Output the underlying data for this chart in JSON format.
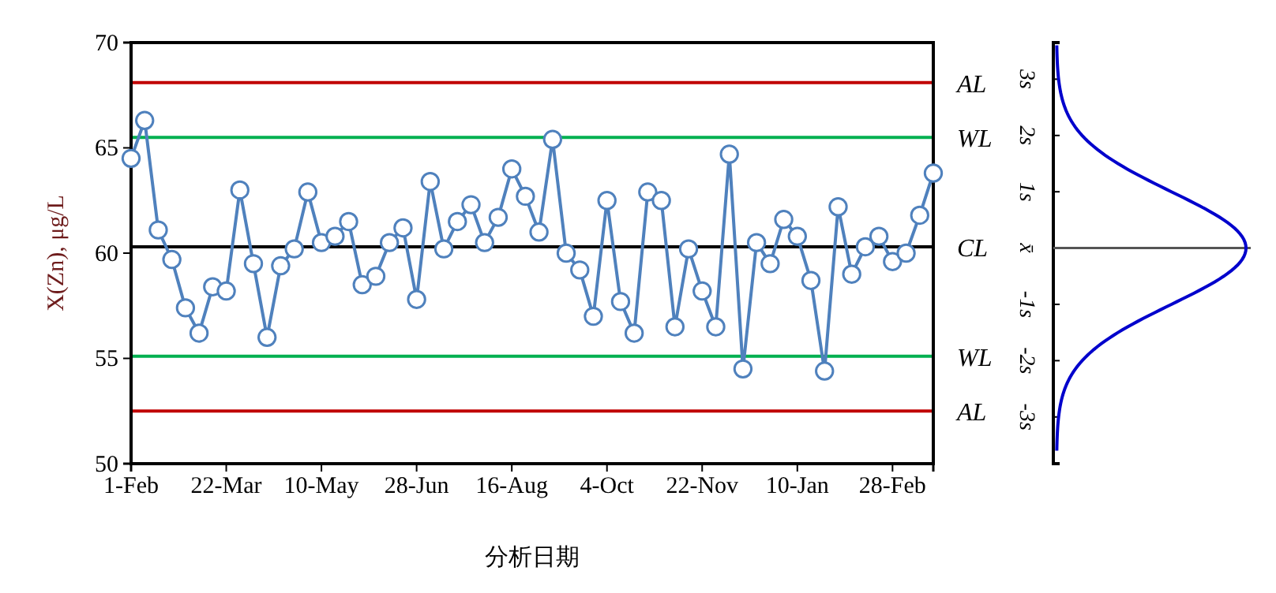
{
  "chart_data": {
    "type": "line",
    "xlabel": "分析日期",
    "ylabel": "X(Zn), μg/L",
    "marker": "circle",
    "line_style": "solid",
    "grid": false,
    "categories": [
      "1-Feb",
      null,
      null,
      null,
      null,
      null,
      null,
      "22-Mar",
      null,
      null,
      null,
      null,
      null,
      null,
      "10-May",
      null,
      null,
      null,
      null,
      null,
      null,
      "28-Jun",
      null,
      null,
      null,
      null,
      null,
      null,
      "16-Aug",
      null,
      null,
      null,
      null,
      null,
      null,
      "4-Oct",
      null,
      null,
      null,
      null,
      null,
      null,
      "22-Nov",
      null,
      null,
      null,
      null,
      null,
      null,
      "10-Jan",
      null,
      null,
      null,
      null,
      null,
      null,
      "28-Feb",
      null,
      null,
      null
    ],
    "series": [
      {
        "color": "#4f81bd",
        "values": [
          64.5,
          66.3,
          61.1,
          59.7,
          57.4,
          56.2,
          58.4,
          58.2,
          63.0,
          59.5,
          56.0,
          59.4,
          60.2,
          62.9,
          60.5,
          60.8,
          61.5,
          58.5,
          58.9,
          60.5,
          61.2,
          57.8,
          63.4,
          60.2,
          61.5,
          62.3,
          60.5,
          61.7,
          64.0,
          62.7,
          61.0,
          65.4,
          60.0,
          59.2,
          57.0,
          62.5,
          57.7,
          56.2,
          62.9,
          62.5,
          56.5,
          60.2,
          58.2,
          56.5,
          64.7,
          54.5,
          60.5,
          59.5,
          61.6,
          60.8,
          58.7,
          54.4,
          62.2,
          59.0,
          60.3,
          60.8,
          59.6,
          60.0,
          61.8,
          63.8
        ]
      }
    ],
    "ylim": [
      50,
      70
    ],
    "yticks": [
      50,
      55,
      60,
      65,
      70
    ],
    "y2lim": [
      -3.83,
      3.65
    ],
    "y2ticks": [
      {
        "value": 3,
        "label": "3s"
      },
      {
        "value": 2,
        "label": "2s"
      },
      {
        "value": 1,
        "label": "1s"
      },
      {
        "value": 0,
        "label": "x̄"
      },
      {
        "value": -1,
        "label": "-1s"
      },
      {
        "value": -2,
        "label": "-2s"
      },
      {
        "value": -3,
        "label": "-3s"
      }
    ],
    "ref_lines": [
      {
        "axis": "y",
        "value": 68.1,
        "label": "AL",
        "color": "#c00000"
      },
      {
        "axis": "y",
        "value": 65.5,
        "label": "WL",
        "color": "#00b050"
      },
      {
        "axis": "y",
        "value": 60.3,
        "label": "CL",
        "color": "#000000"
      },
      {
        "axis": "y",
        "value": 55.1,
        "label": "WL",
        "color": "#00b050"
      },
      {
        "axis": "y",
        "value": 52.5,
        "label": "AL",
        "color": "#c00000"
      }
    ]
  }
}
